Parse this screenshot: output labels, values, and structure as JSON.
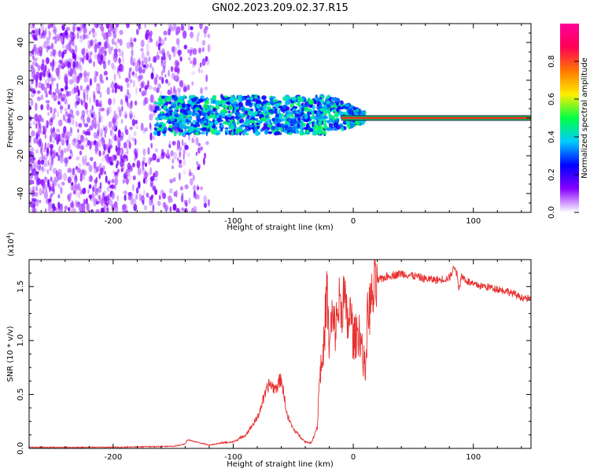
{
  "title": "GN02.2023.209.02.37.R15",
  "colors": {
    "snr_line": "#e83030",
    "axis": "#000000",
    "carrier_outer": "#00cc55",
    "carrier_mid": "#ff2222"
  },
  "chart_data": [
    {
      "type": "heatmap",
      "name": "spectrogram",
      "title": "GN02.2023.209.02.37.R15",
      "xlabel": "Height of straight line (km)",
      "ylabel": "Frequency (Hz)",
      "xlim": [
        -270,
        148
      ],
      "ylim": [
        -50,
        50
      ],
      "xticks": [
        -200,
        -100,
        0,
        100
      ],
      "xtick_labels": [
        "-200",
        "-100",
        "0",
        "100"
      ],
      "yticks": [
        -40,
        -20,
        0,
        20,
        40
      ],
      "ytick_labels": [
        "-40",
        "-20",
        "0",
        "20",
        "40"
      ],
      "colorbar": {
        "label": "Normalized spectral amplitude",
        "range": [
          0,
          1
        ],
        "ticks": [
          0.0,
          0.2,
          0.4,
          0.6,
          0.8
        ],
        "tick_labels": [
          "0.0",
          "0.2",
          "0.4",
          "0.6",
          "0.8"
        ],
        "colormap": [
          "#ffffff",
          "#8800ff",
          "#0000ff",
          "#00ccff",
          "#00ff44",
          "#ffee00",
          "#ff7700",
          "#ff0055",
          "#ff0099"
        ]
      },
      "regions": [
        {
          "x_range": [
            -270,
            -120
          ],
          "freq_range": [
            -50,
            50
          ],
          "amplitude": [
            0.05,
            0.15
          ],
          "description_value": "broadband noise"
        },
        {
          "x_range": [
            -165,
            10
          ],
          "freq_range": [
            -8,
            10
          ],
          "amplitude": [
            0.2,
            0.5
          ]
        },
        {
          "x_range": [
            -10,
            148
          ],
          "freq_center": 0,
          "amplitude": 0.98
        }
      ],
      "grid": false
    },
    {
      "type": "line",
      "name": "snr",
      "xlabel": "Height of straight line (km)",
      "ylabel": "SNR (10 * v/v)",
      "y_scale_label": "(x10",
      "y_scale_exp": "4",
      "y_scale_close": ")",
      "xlim": [
        -270,
        148
      ],
      "ylim": [
        0,
        1.75
      ],
      "xticks": [
        -200,
        -100,
        0,
        100
      ],
      "xtick_labels": [
        "-200",
        "-100",
        "0",
        "100"
      ],
      "yticks": [
        0.0,
        0.5,
        1.0,
        1.5
      ],
      "ytick_labels": [
        "0.0",
        "0.5",
        "1.0",
        "1.5"
      ],
      "series": [
        {
          "color": "#e83030",
          "x": [
            -270,
            -200,
            -150,
            -140,
            -138,
            -120,
            -110,
            -100,
            -90,
            -80,
            -75,
            -70,
            -65,
            -60,
            -55,
            -50,
            -45,
            -40,
            -35,
            -30,
            -28,
            -25,
            -22,
            -20,
            -18,
            -15,
            -12,
            -10,
            -8,
            -5,
            -2,
            0,
            5,
            10,
            12,
            15,
            20,
            25,
            30,
            40,
            50,
            60,
            70,
            80,
            85,
            88,
            90,
            95,
            100,
            110,
            120,
            130,
            140,
            148
          ],
          "y": [
            0.01,
            0.01,
            0.02,
            0.04,
            0.08,
            0.03,
            0.05,
            0.06,
            0.12,
            0.28,
            0.45,
            0.6,
            0.55,
            0.65,
            0.3,
            0.18,
            0.12,
            0.06,
            0.05,
            0.2,
            0.7,
            0.85,
            1.5,
            0.9,
            1.2,
            1.1,
            1.35,
            1.3,
            1.42,
            1.15,
            1.25,
            1.0,
            1.1,
            0.7,
            1.25,
            1.35,
            1.55,
            1.58,
            1.6,
            1.62,
            1.6,
            1.57,
            1.56,
            1.58,
            1.7,
            1.48,
            1.6,
            1.55,
            1.52,
            1.5,
            1.48,
            1.45,
            1.4,
            1.38
          ]
        }
      ],
      "grid": false
    }
  ]
}
